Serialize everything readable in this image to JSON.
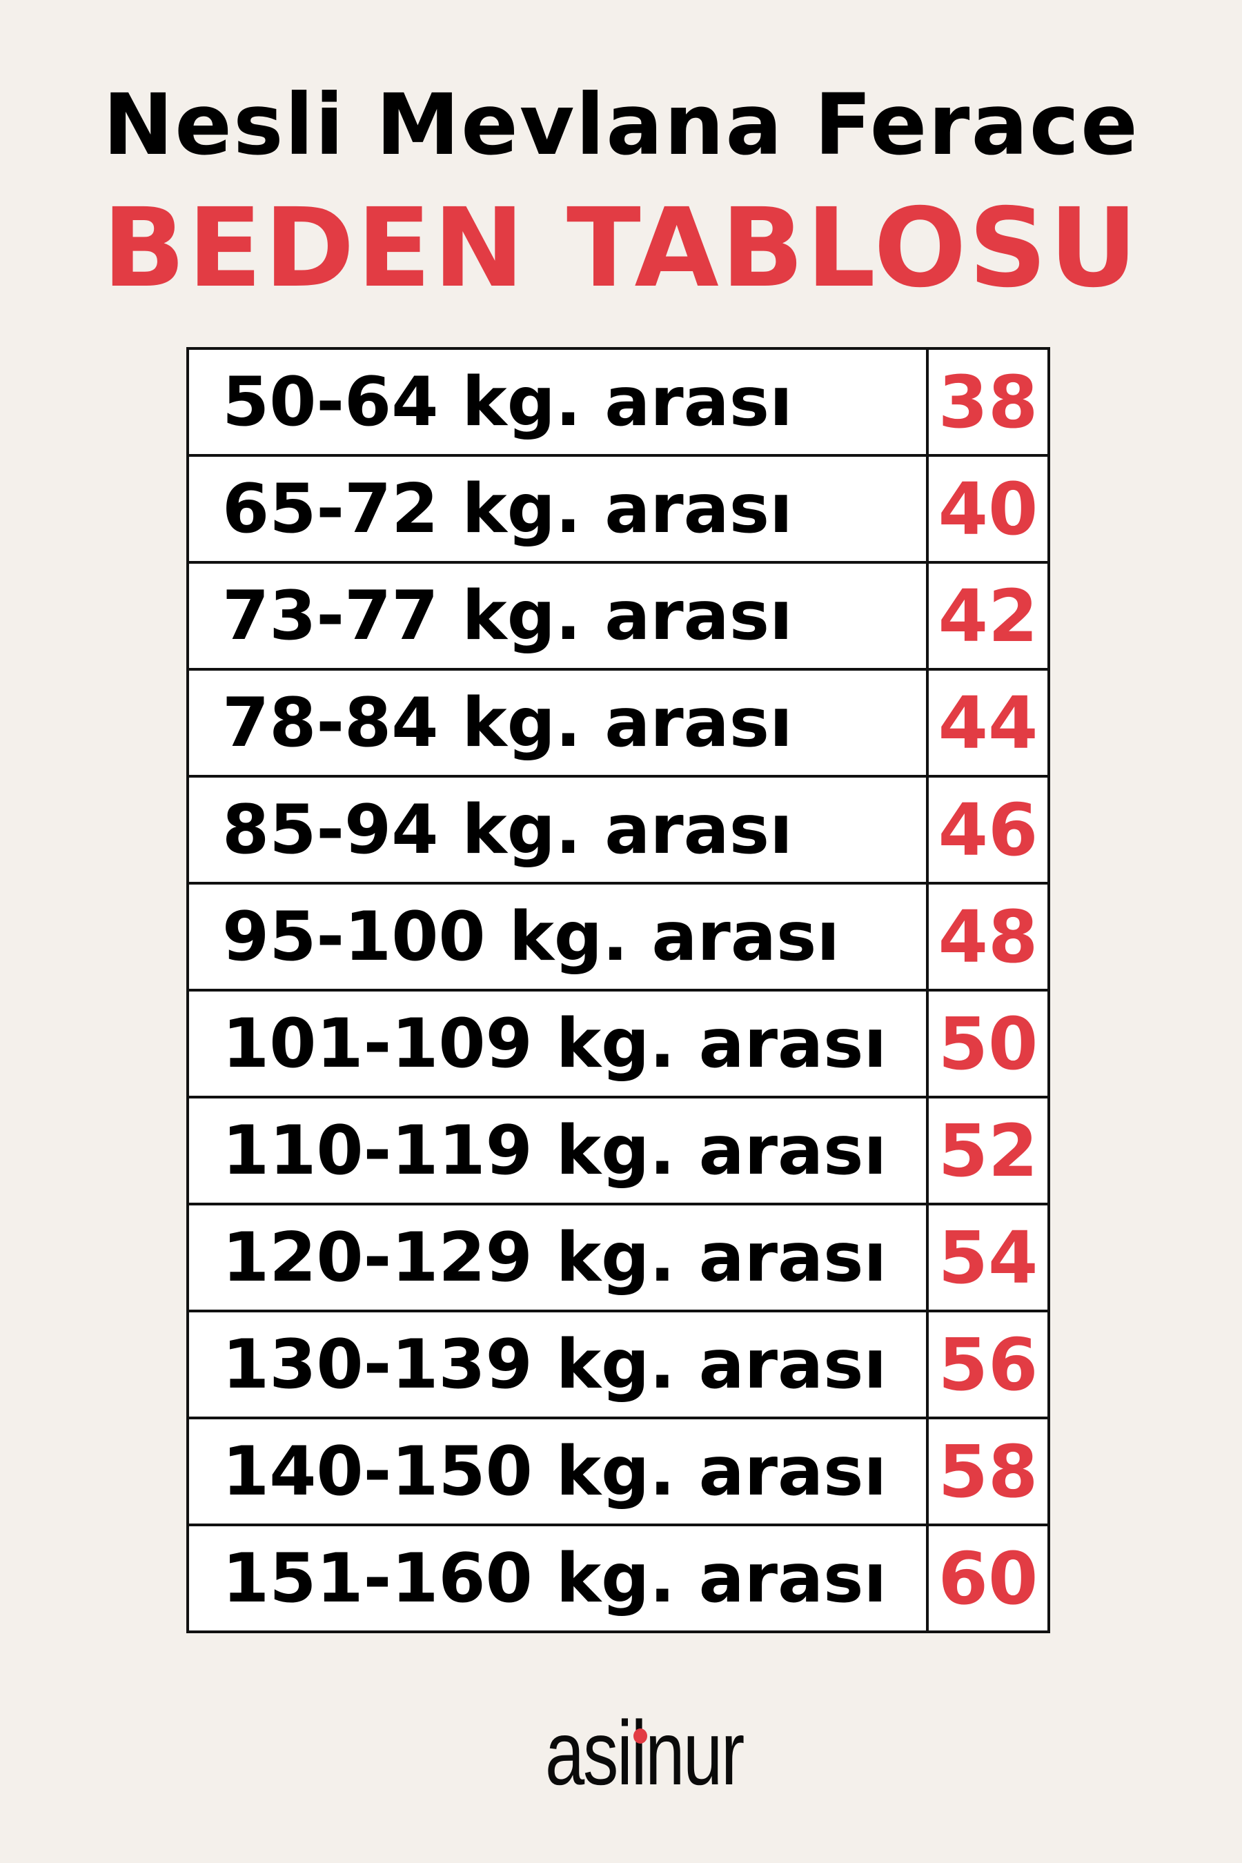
{
  "header": {
    "title": "Nesli Mevlana Ferace",
    "subtitle": "BEDEN TABLOSU"
  },
  "size_table": {
    "rows": [
      {
        "range": "50-64 kg. arası",
        "size": "38"
      },
      {
        "range": "65-72 kg. arası",
        "size": "40"
      },
      {
        "range": "73-77 kg. arası",
        "size": "42"
      },
      {
        "range": "78-84 kg. arası",
        "size": "44"
      },
      {
        "range": "85-94 kg. arası",
        "size": "46"
      },
      {
        "range": "95-100 kg. arası",
        "size": "48"
      },
      {
        "range": "101-109 kg. arası",
        "size": "50"
      },
      {
        "range": "110-119 kg. arası",
        "size": "52"
      },
      {
        "range": "120-129 kg. arası",
        "size": "54"
      },
      {
        "range": "130-139 kg. arası",
        "size": "56"
      },
      {
        "range": "140-150 kg. arası",
        "size": "58"
      },
      {
        "range": "151-160 kg. arası",
        "size": "60"
      }
    ]
  },
  "brand": {
    "logo_text": "asilnur"
  },
  "colors": {
    "accent": "#e23c44",
    "background": "#f4f0eb",
    "text": "#000000"
  }
}
